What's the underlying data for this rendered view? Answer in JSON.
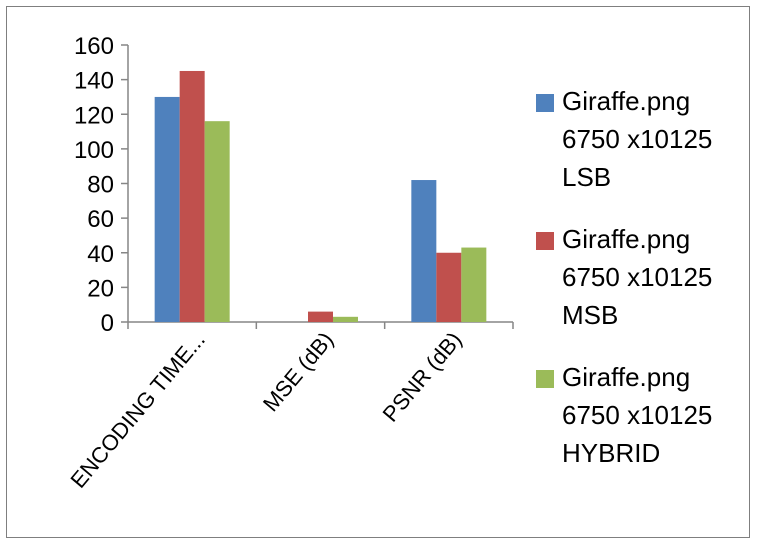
{
  "chart_data": {
    "type": "bar",
    "categories": [
      "ENCODING TIME...",
      "MSE (dB)",
      "PSNR (dB)"
    ],
    "series": [
      {
        "name": "Giraffe.png 6750 x10125 LSB",
        "lines": [
          "Giraffe.png",
          "6750 x10125",
          "LSB"
        ],
        "color": "#4f81bd",
        "values": [
          130,
          0,
          82
        ]
      },
      {
        "name": "Giraffe.png 6750 x10125 MSB",
        "lines": [
          "Giraffe.png",
          "6750 x10125",
          "MSB"
        ],
        "color": "#c0504d",
        "values": [
          145,
          6,
          40
        ]
      },
      {
        "name": "Giraffe.png 6750 x10125 HYBRID",
        "lines": [
          "Giraffe.png",
          "6750 x10125",
          "HYBRID"
        ],
        "color": "#9bbb59",
        "values": [
          116,
          3,
          43
        ]
      }
    ],
    "ylim": [
      0,
      160
    ],
    "yticks": [
      "0",
      "20",
      "40",
      "60",
      "80",
      "100",
      "120",
      "140",
      "160"
    ],
    "title": "",
    "xlabel": "",
    "ylabel": "",
    "grid": false,
    "legend_position": "right"
  }
}
